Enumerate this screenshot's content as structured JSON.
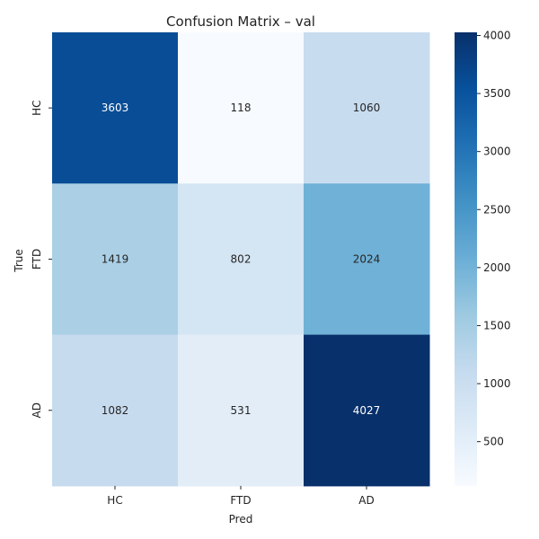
{
  "chart_data": {
    "type": "heatmap",
    "title": "Confusion Matrix – val",
    "xlabel": "Pred",
    "ylabel": "True",
    "x_categories": [
      "HC",
      "FTD",
      "AD"
    ],
    "y_categories": [
      "HC",
      "FTD",
      "AD"
    ],
    "values": [
      [
        3603,
        118,
        1060
      ],
      [
        1419,
        802,
        2024
      ],
      [
        1082,
        531,
        4027
      ]
    ],
    "colormap": "Blues",
    "colorbar": {
      "min": 118,
      "max": 4027,
      "ticks": [
        500,
        1000,
        1500,
        2000,
        2500,
        3000,
        3500,
        4000
      ]
    }
  }
}
